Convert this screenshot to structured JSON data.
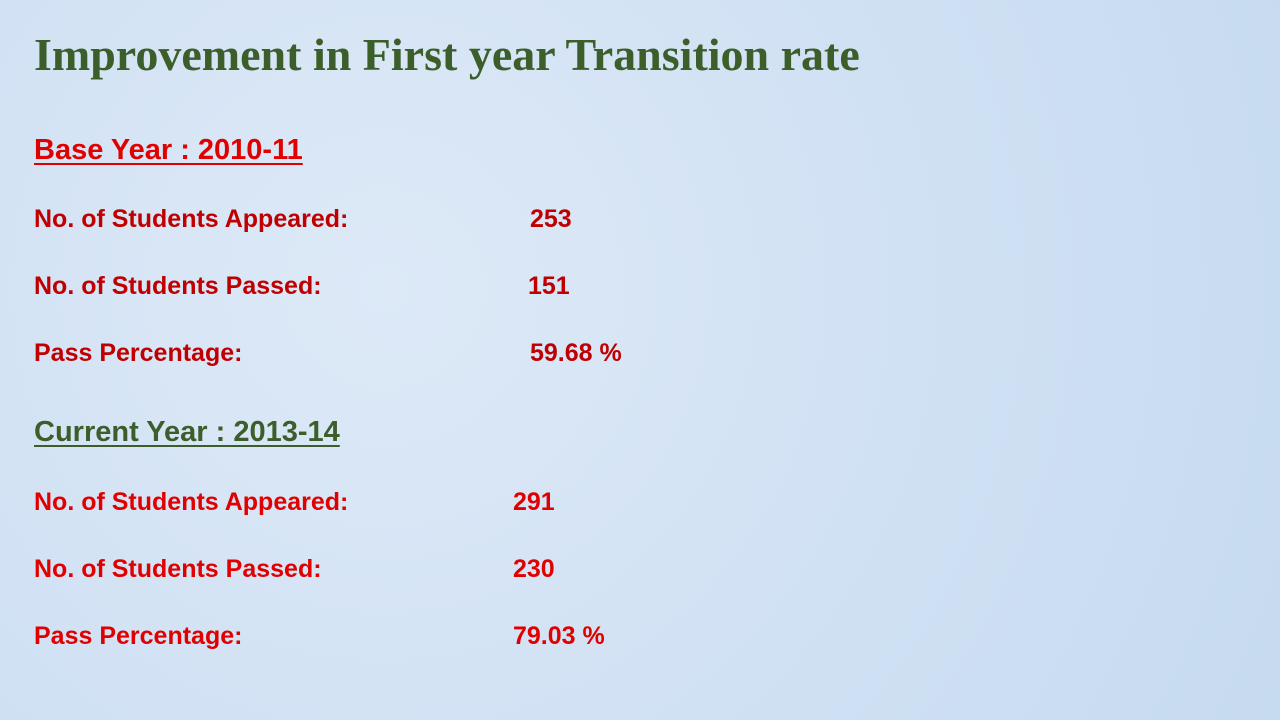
{
  "title": "Improvement in First year Transition rate",
  "sections": [
    {
      "heading": "Base Year : 2010-11",
      "rows": [
        [
          "No. of Students Appeared:",
          "253"
        ],
        [
          "No. of Students Passed:",
          "151"
        ],
        [
          "Pass Percentage:",
          "59.68 %"
        ]
      ]
    },
    {
      "heading": "Current Year : 2013-14",
      "rows": [
        [
          "No. of Students Appeared:",
          "291"
        ],
        [
          "No. of Students Passed:",
          "230"
        ],
        [
          "Pass Percentage:",
          "79.03 %"
        ]
      ]
    }
  ]
}
